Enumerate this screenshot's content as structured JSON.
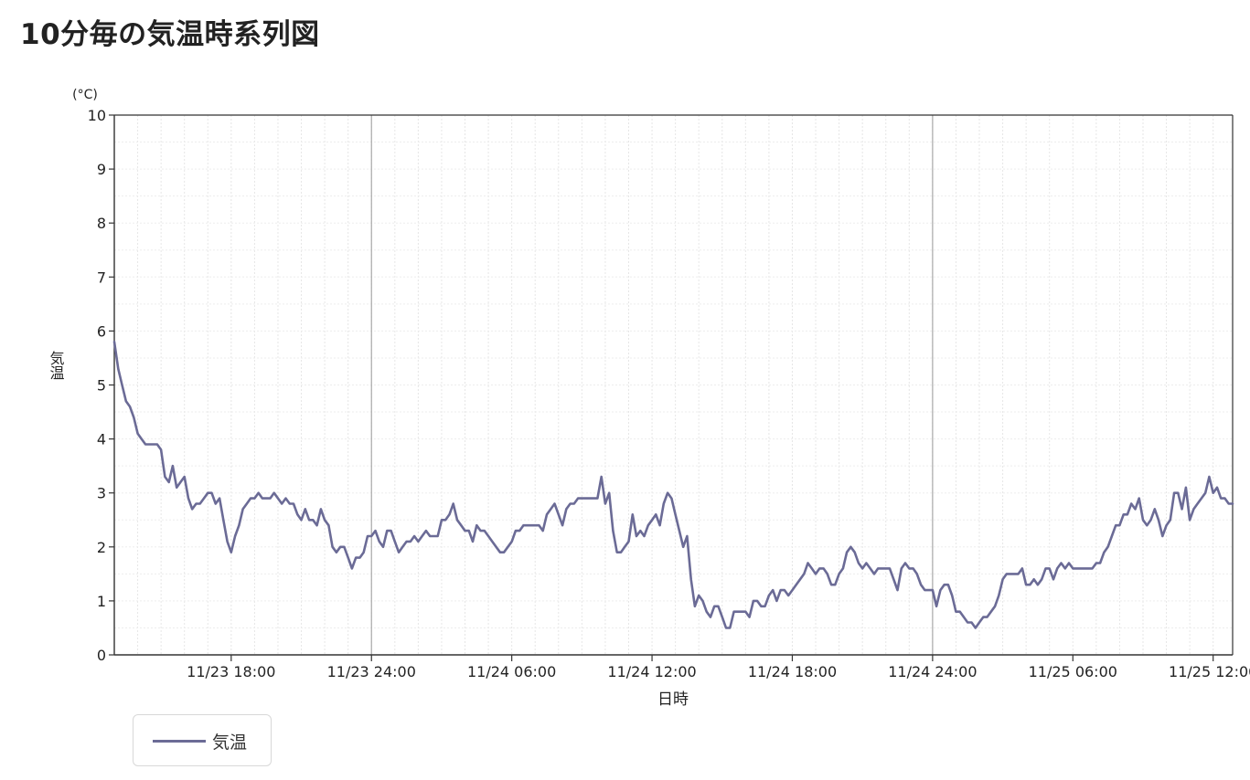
{
  "page": {
    "title": "10分毎の気温時系列図"
  },
  "legend": {
    "series_label": "気温"
  },
  "chart_data": {
    "type": "line",
    "title": "10分毎の気温時系列図",
    "xlabel": "日時",
    "ylabel": "気温",
    "yunit": "(°C)",
    "ylim": [
      0,
      10
    ],
    "yticks": [
      0,
      1,
      2,
      3,
      4,
      5,
      6,
      7,
      8,
      9,
      10
    ],
    "xlim": [
      "11/23 13:00",
      "11/25 12:50"
    ],
    "xticks": [
      "11/23 18:00",
      "11/23 24:00",
      "11/24 06:00",
      "11/24 12:00",
      "11/24 18:00",
      "11/24 24:00",
      "11/25 06:00",
      "11/25 12:00"
    ],
    "interval_minutes": 10,
    "grid": true,
    "legend_position": "bottom-left",
    "line_color": "#6b6b96",
    "series": [
      {
        "name": "気温",
        "start": "11/23 13:00",
        "values": [
          5.8,
          5.3,
          5.0,
          4.7,
          4.6,
          4.4,
          4.1,
          4.0,
          3.9,
          3.9,
          3.9,
          3.9,
          3.8,
          3.3,
          3.2,
          3.5,
          3.1,
          3.2,
          3.3,
          2.9,
          2.7,
          2.8,
          2.8,
          2.9,
          3.0,
          3.0,
          2.8,
          2.9,
          2.5,
          2.1,
          1.9,
          2.2,
          2.4,
          2.7,
          2.8,
          2.9,
          2.9,
          3.0,
          2.9,
          2.9,
          2.9,
          3.0,
          2.9,
          2.8,
          2.9,
          2.8,
          2.8,
          2.6,
          2.5,
          2.7,
          2.5,
          2.5,
          2.4,
          2.7,
          2.5,
          2.4,
          2.0,
          1.9,
          2.0,
          2.0,
          1.8,
          1.6,
          1.8,
          1.8,
          1.9,
          2.2,
          2.2,
          2.3,
          2.1,
          2.0,
          2.3,
          2.3,
          2.1,
          1.9,
          2.0,
          2.1,
          2.1,
          2.2,
          2.1,
          2.2,
          2.3,
          2.2,
          2.2,
          2.2,
          2.5,
          2.5,
          2.6,
          2.8,
          2.5,
          2.4,
          2.3,
          2.3,
          2.1,
          2.4,
          2.3,
          2.3,
          2.2,
          2.1,
          2.0,
          1.9,
          1.9,
          2.0,
          2.1,
          2.3,
          2.3,
          2.4,
          2.4,
          2.4,
          2.4,
          2.4,
          2.3,
          2.6,
          2.7,
          2.8,
          2.6,
          2.4,
          2.7,
          2.8,
          2.8,
          2.9,
          2.9,
          2.9,
          2.9,
          2.9,
          2.9,
          3.3,
          2.8,
          3.0,
          2.3,
          1.9,
          1.9,
          2.0,
          2.1,
          2.6,
          2.2,
          2.3,
          2.2,
          2.4,
          2.5,
          2.6,
          2.4,
          2.8,
          3.0,
          2.9,
          2.6,
          2.3,
          2.0,
          2.2,
          1.4,
          0.9,
          1.1,
          1.0,
          0.8,
          0.7,
          0.9,
          0.9,
          0.7,
          0.5,
          0.5,
          0.8,
          0.8,
          0.8,
          0.8,
          0.7,
          1.0,
          1.0,
          0.9,
          0.9,
          1.1,
          1.2,
          1.0,
          1.2,
          1.2,
          1.1,
          1.2,
          1.3,
          1.4,
          1.5,
          1.7,
          1.6,
          1.5,
          1.6,
          1.6,
          1.5,
          1.3,
          1.3,
          1.5,
          1.6,
          1.9,
          2.0,
          1.9,
          1.7,
          1.6,
          1.7,
          1.6,
          1.5,
          1.6,
          1.6,
          1.6,
          1.6,
          1.4,
          1.2,
          1.6,
          1.7,
          1.6,
          1.6,
          1.5,
          1.3,
          1.2,
          1.2,
          1.2,
          0.9,
          1.2,
          1.3,
          1.3,
          1.1,
          0.8,
          0.8,
          0.7,
          0.6,
          0.6,
          0.5,
          0.6,
          0.7,
          0.7,
          0.8,
          0.9,
          1.1,
          1.4,
          1.5,
          1.5,
          1.5,
          1.5,
          1.6,
          1.3,
          1.3,
          1.4,
          1.3,
          1.4,
          1.6,
          1.6,
          1.4,
          1.6,
          1.7,
          1.6,
          1.7,
          1.6,
          1.6,
          1.6,
          1.6,
          1.6,
          1.6,
          1.7,
          1.7,
          1.9,
          2.0,
          2.2,
          2.4,
          2.4,
          2.6,
          2.6,
          2.8,
          2.7,
          2.9,
          2.5,
          2.4,
          2.5,
          2.7,
          2.5,
          2.2,
          2.4,
          2.5,
          3.0,
          3.0,
          2.7,
          3.1,
          2.5,
          2.7,
          2.8,
          2.9,
          3.0,
          3.3,
          3.0,
          3.1,
          2.9,
          2.9,
          2.8,
          2.8
        ]
      }
    ]
  }
}
